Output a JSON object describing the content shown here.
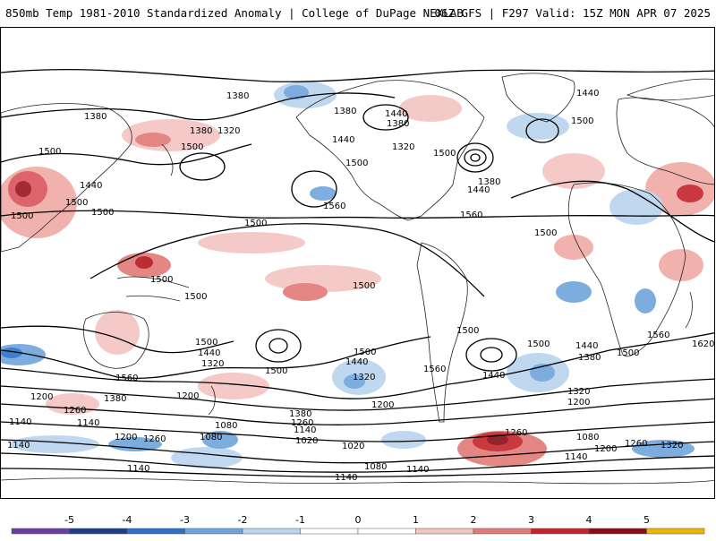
{
  "title": {
    "left": "850mb Temp 1981-2010 Standardized Anomaly | College of DuPage NEXLAB",
    "right": "06Z GFS | F297 Valid: 15Z MON APR 07 2025"
  },
  "colorbar": {
    "ticks": [
      "-5",
      "-4",
      "-3",
      "-2",
      "-1",
      "0",
      "1",
      "2",
      "3",
      "4",
      "5"
    ],
    "colors": [
      "#6a3fa0",
      "#1f3c88",
      "#2f6fc9",
      "#6fa5dc",
      "#b9d4ee",
      "#ffffff",
      "#ffffff",
      "#f4c4c0",
      "#e27a76",
      "#c4242b",
      "#8a0c16",
      "#f0b400"
    ]
  },
  "contour_labels": [
    {
      "text": "1380"
    },
    {
      "text": "1380"
    },
    {
      "text": "1380"
    },
    {
      "text": "1320"
    },
    {
      "text": "1500"
    },
    {
      "text": "1440"
    },
    {
      "text": "1500"
    },
    {
      "text": "1500"
    },
    {
      "text": "1500"
    },
    {
      "text": "1380"
    },
    {
      "text": "1440"
    },
    {
      "text": "1380"
    },
    {
      "text": "1320"
    },
    {
      "text": "1440"
    },
    {
      "text": "1500"
    },
    {
      "text": "1500"
    },
    {
      "text": "1560"
    },
    {
      "text": "1380"
    },
    {
      "text": "1440"
    },
    {
      "text": "1560"
    },
    {
      "text": "1440"
    },
    {
      "text": "1500"
    },
    {
      "text": "1500"
    },
    {
      "text": "1500"
    },
    {
      "text": "1500"
    },
    {
      "text": "1500"
    },
    {
      "text": "1500"
    },
    {
      "text": "1500"
    },
    {
      "text": "1500"
    },
    {
      "text": "1500"
    },
    {
      "text": "1440"
    },
    {
      "text": "1380"
    },
    {
      "text": "1560"
    },
    {
      "text": "1500"
    },
    {
      "text": "1620"
    },
    {
      "text": "1500"
    },
    {
      "text": "1440"
    },
    {
      "text": "1320"
    },
    {
      "text": "1500"
    },
    {
      "text": "1560"
    },
    {
      "text": "1500"
    },
    {
      "text": "1440"
    },
    {
      "text": "1320"
    },
    {
      "text": "1560"
    },
    {
      "text": "1440"
    },
    {
      "text": "1200"
    },
    {
      "text": "1380"
    },
    {
      "text": "1260"
    },
    {
      "text": "1140"
    },
    {
      "text": "1200"
    },
    {
      "text": "1080"
    },
    {
      "text": "1380"
    },
    {
      "text": "1260"
    },
    {
      "text": "1140"
    },
    {
      "text": "1200"
    },
    {
      "text": "1320"
    },
    {
      "text": "1200"
    },
    {
      "text": "1140"
    },
    {
      "text": "1200"
    },
    {
      "text": "1260"
    },
    {
      "text": "1140"
    },
    {
      "text": "1080"
    },
    {
      "text": "1020"
    },
    {
      "text": "1020"
    },
    {
      "text": "1080"
    },
    {
      "text": "1140"
    },
    {
      "text": "1260"
    },
    {
      "text": "1080"
    },
    {
      "text": "1200"
    },
    {
      "text": "1140"
    },
    {
      "text": "1260"
    },
    {
      "text": "1320"
    },
    {
      "text": "1140"
    },
    {
      "text": "1140"
    }
  ]
}
